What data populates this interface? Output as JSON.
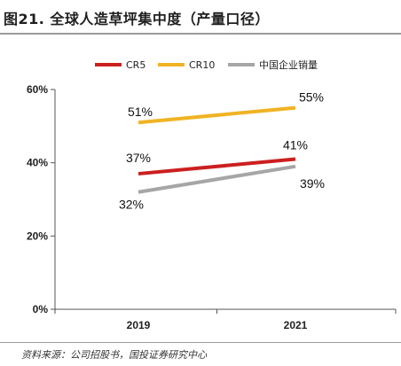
{
  "figure": {
    "title": "图21. 全球人造草坪集中度（产量口径）",
    "source": "资料来源：公司招股书，国投证券研究中心"
  },
  "chart_data": {
    "type": "line",
    "x": [
      "2019",
      "2021"
    ],
    "ylim": [
      0,
      60
    ],
    "yticks": [
      0,
      20,
      40,
      60
    ],
    "ytick_labels": [
      "0%",
      "20%",
      "40%",
      "60%"
    ],
    "grid": false,
    "legend_position": "top",
    "series": [
      {
        "name": "CR5",
        "values": [
          37,
          41
        ],
        "labels": [
          "37%",
          "41%"
        ],
        "color": "#cc1f1f"
      },
      {
        "name": "CR10",
        "values": [
          51,
          55
        ],
        "labels": [
          "51%",
          "55%"
        ],
        "color": "#f0b323"
      },
      {
        "name": "中国企业销量",
        "values": [
          32,
          39
        ],
        "labels": [
          "32%",
          "39%"
        ],
        "color": "#a6a6a6"
      }
    ]
  }
}
